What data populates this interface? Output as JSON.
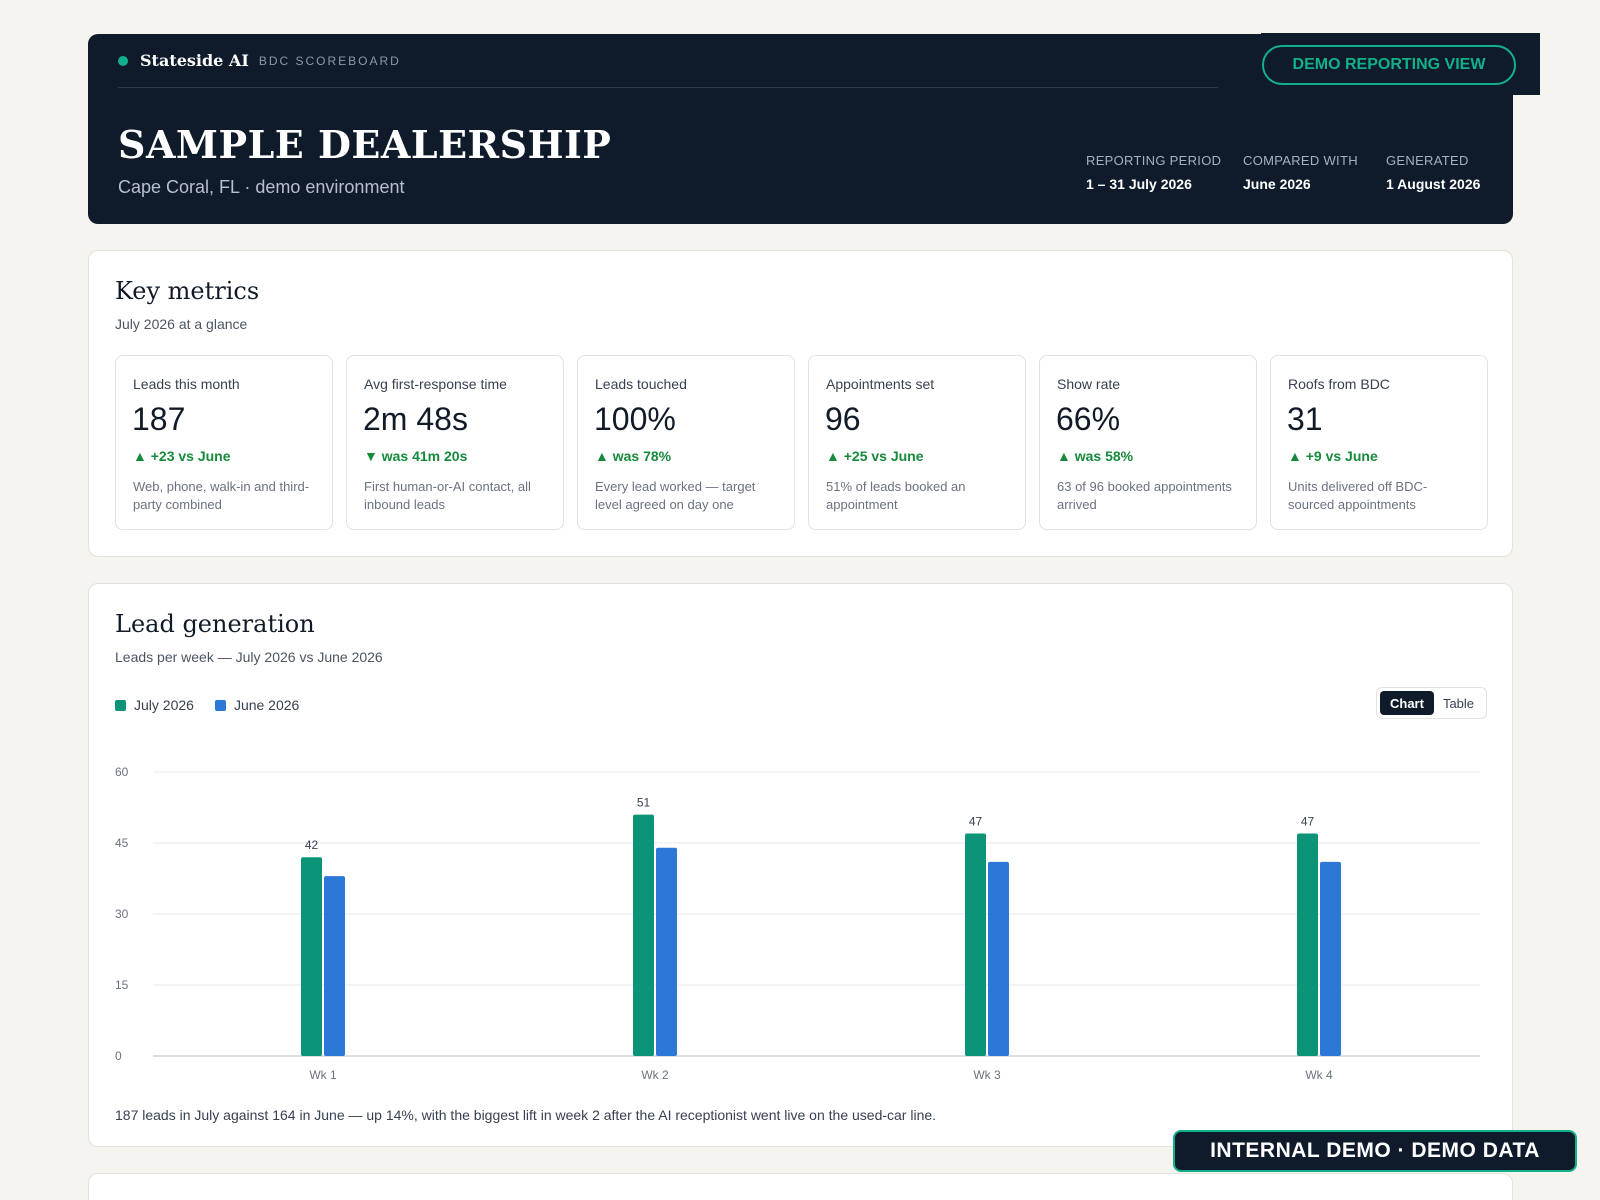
{
  "header": {
    "brand": "Stateside AI",
    "brand_sub": "BDC SCOREBOARD",
    "demo_button": "DEMO REPORTING VIEW",
    "dealer": "SAMPLE DEALERSHIP",
    "dealer_sub": "Cape Coral, FL · demo environment",
    "meta": [
      {
        "label": "REPORTING PERIOD",
        "value": "1 – 31 July 2026"
      },
      {
        "label": "COMPARED WITH",
        "value": "June 2026"
      },
      {
        "label": "GENERATED",
        "value": "1 August 2026"
      }
    ]
  },
  "key_metrics": {
    "title": "Key metrics",
    "subtitle": "July 2026 at a glance",
    "cards": [
      {
        "label": "Leads this month",
        "value": "187",
        "delta": "▲ +23 vs June",
        "note": "Web, phone, walk-in and third-party combined"
      },
      {
        "label": "Avg first-response time",
        "value": "2m 48s",
        "delta": "▼ was 41m 20s",
        "note": "First human-or-AI contact, all inbound leads"
      },
      {
        "label": "Leads touched",
        "value": "100%",
        "delta": "▲ was 78%",
        "note": "Every lead worked — target level agreed on day one"
      },
      {
        "label": "Appointments set",
        "value": "96",
        "delta": "▲ +25 vs June",
        "note": "51% of leads booked an appointment"
      },
      {
        "label": "Show rate",
        "value": "66%",
        "delta": "▲ was 58%",
        "note": "63 of 96 booked appointments arrived"
      },
      {
        "label": "Roofs from BDC",
        "value": "31",
        "delta": "▲ +9 vs June",
        "note": "Units delivered off BDC-sourced appointments"
      }
    ]
  },
  "lead_generation": {
    "title": "Lead generation",
    "subtitle": "Leads per week — July 2026 vs June 2026",
    "toggle": {
      "chart": "Chart",
      "table": "Table"
    },
    "caption": "187 leads in July against 164 in June — up 14%, with the biggest lift in week 2 after the AI receptionist went live on the used-car line."
  },
  "chart_data": {
    "type": "bar",
    "categories": [
      "Wk 1",
      "Wk 2",
      "Wk 3",
      "Wk 4"
    ],
    "series": [
      {
        "name": "July 2026",
        "values": [
          42,
          51,
          47,
          47
        ],
        "color": "#0b9478",
        "labels_shown": true
      },
      {
        "name": "June 2026",
        "values": [
          38,
          44,
          41,
          41
        ],
        "color": "#2b78d6",
        "labels_shown": false
      }
    ],
    "yticks": [
      0,
      15,
      30,
      45,
      60
    ],
    "ylim": [
      0,
      60
    ],
    "grid": true,
    "legend": "top-left"
  },
  "footer_badge": "INTERNAL DEMO · DEMO DATA"
}
